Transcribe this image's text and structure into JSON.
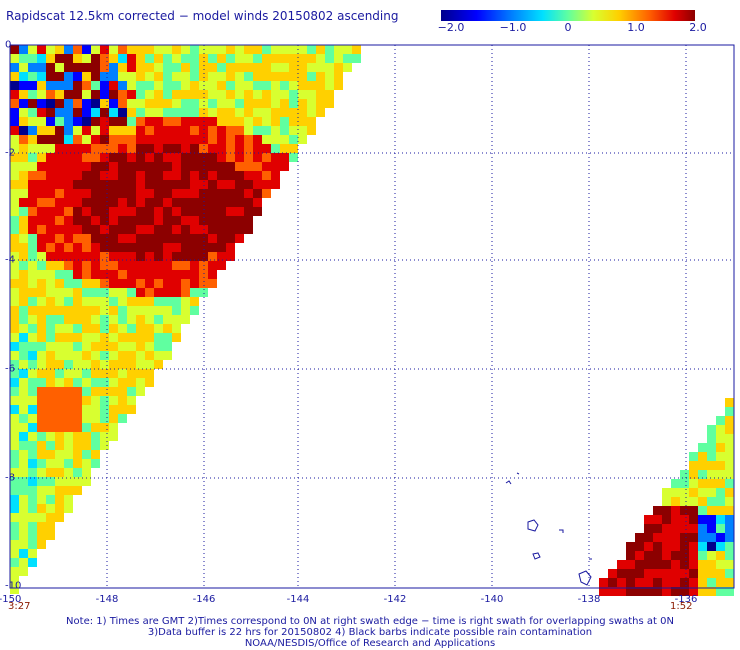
{
  "header": {
    "title": "Rapidscat 12.5km corrected − model winds 20150802 ascending"
  },
  "colorbar": {
    "ticks": [
      "−2.0",
      "−1.0",
      "0",
      "1.0",
      "2.0"
    ],
    "colors": [
      "#00008c",
      "#0000ff",
      "#0080ff",
      "#00e0ff",
      "#60ffa0",
      "#d8ff30",
      "#ffd000",
      "#ff6000",
      "#e00000",
      "#8c0000"
    ]
  },
  "axes": {
    "x_labels": [
      "-150",
      "-148",
      "-146",
      "-144",
      "-142",
      "-140",
      "-138",
      "-136"
    ],
    "y_labels": [
      "0",
      "-2",
      "-4",
      "-6",
      "-8",
      "-10"
    ]
  },
  "swath_times": {
    "left": "3:27",
    "right": "1:52"
  },
  "footer": {
    "line1": "Note: 1) Times are GMT 2)Times correspond to 0N at right swath edge − time is right swath for overlapping swaths at 0N",
    "line2": "3)Data buffer is 22 hrs for 20150802 4) Black barbs indicate possible rain contamination",
    "line3": "NOAA/NESDIS/Office of Research and Applications"
  },
  "map": {
    "grid_lines": "dotted",
    "data_field": "wind speed difference (corrected − model)"
  }
}
